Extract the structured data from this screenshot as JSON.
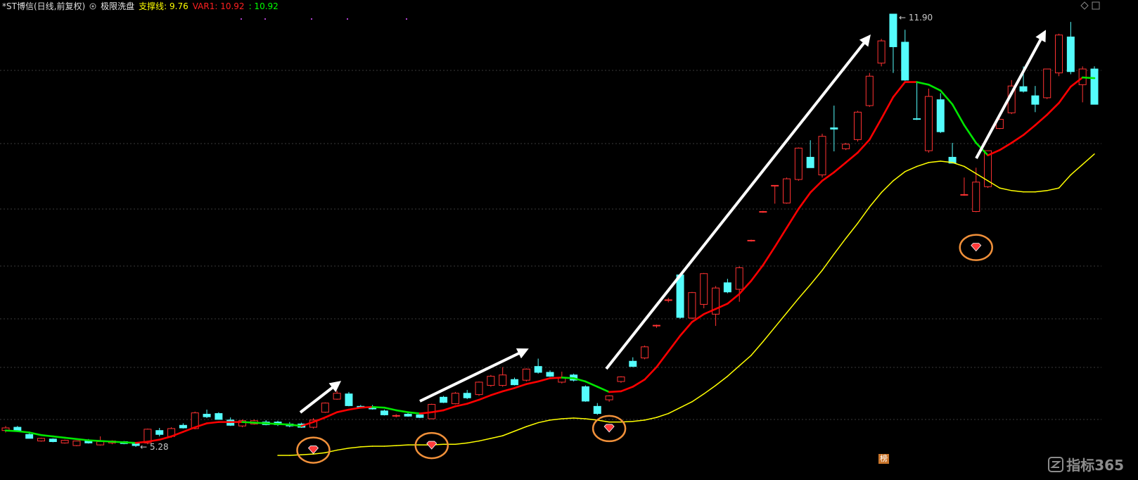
{
  "chart_data": {
    "type": "candlestick",
    "title": "*ST博信(日线,前复权)",
    "indicator": "极限洗盘",
    "legend": [
      {
        "text": "支撑线: 9.76",
        "color": "#ffff00"
      },
      {
        "text": "VAR1: 10.92",
        "color": "#ff2020"
      },
      {
        "text": ": 10.92",
        "color": "#00ff00"
      }
    ],
    "max_label": "← 11.90",
    "min_label": "← 5.28",
    "up_color": "#ff3232",
    "down_color": "#54fcfc",
    "open": [
      5.53,
      5.58,
      5.47,
      5.37,
      5.4,
      5.34,
      5.3,
      5.38,
      5.31,
      5.34,
      5.36,
      5.34,
      5.34,
      5.53,
      5.44,
      5.61,
      5.56,
      5.78,
      5.79,
      5.69,
      5.6,
      5.63,
      5.66,
      5.66,
      5.63,
      5.63,
      5.58,
      5.81,
      6.01,
      6.09,
      5.9,
      5.88,
      5.83,
      5.75,
      5.78,
      5.77,
      5.71,
      6.04,
      5.94,
      6.1,
      6.08,
      6.22,
      6.22,
      6.31,
      6.3,
      6.51,
      6.42,
      6.27,
      6.38,
      6.2,
      5.9,
      6.0,
      6.28,
      6.59,
      6.64,
      7.13,
      7.52,
      7.91,
      7.25,
      7.46,
      7.31,
      7.79,
      7.69,
      8.43,
      8.87,
      9.27,
      9.01,
      9.37,
      9.71,
      9.44,
      10.16,
      9.84,
      9.98,
      10.5,
      11.15,
      11.9,
      11.47,
      10.3,
      9.81,
      10.59,
      9.71,
      9.13,
      8.88,
      9.26,
      10.15,
      10.39,
      10.79,
      10.65,
      10.62,
      11.0,
      11.55,
      10.82,
      11.06
    ],
    "high": [
      5.6,
      5.6,
      5.49,
      5.42,
      5.41,
      5.39,
      5.37,
      5.4,
      5.44,
      5.38,
      5.37,
      5.35,
      5.56,
      5.57,
      5.58,
      5.64,
      5.82,
      5.85,
      5.81,
      5.73,
      5.7,
      5.7,
      5.69,
      5.68,
      5.66,
      5.65,
      5.72,
      5.96,
      6.14,
      6.12,
      5.92,
      5.92,
      5.85,
      5.78,
      5.8,
      5.79,
      5.94,
      6.06,
      6.12,
      6.15,
      6.28,
      6.38,
      6.5,
      6.34,
      6.48,
      6.63,
      6.45,
      6.43,
      6.4,
      6.22,
      5.95,
      6.07,
      6.36,
      6.65,
      6.83,
      7.15,
      7.56,
      7.93,
      7.65,
      7.94,
      7.74,
      7.85,
      8.04,
      8.45,
      8.89,
      9.28,
      9.4,
      9.86,
      9.97,
      10.07,
      10.5,
      9.93,
      10.42,
      11.0,
      11.52,
      11.9,
      11.66,
      10.85,
      10.76,
      10.69,
      9.93,
      9.4,
      9.55,
      9.81,
      10.3,
      10.89,
      11.1,
      10.8,
      11.06,
      11.6,
      11.78,
      11.1,
      11.1
    ],
    "low": [
      5.5,
      5.52,
      5.43,
      5.36,
      5.35,
      5.33,
      5.29,
      5.33,
      5.3,
      5.32,
      5.32,
      5.28,
      5.32,
      5.44,
      5.42,
      5.56,
      5.55,
      5.72,
      5.7,
      5.6,
      5.58,
      5.62,
      5.61,
      5.6,
      5.58,
      5.57,
      5.56,
      5.8,
      6.0,
      5.9,
      5.87,
      5.85,
      5.76,
      5.73,
      5.74,
      5.72,
      5.7,
      5.95,
      5.93,
      6.01,
      6.06,
      6.2,
      6.2,
      6.22,
      6.28,
      6.4,
      6.35,
      6.25,
      6.28,
      5.97,
      5.77,
      5.97,
      6.26,
      6.5,
      6.62,
      7.1,
      7.49,
      7.24,
      7.23,
      7.4,
      7.13,
      7.63,
      7.5,
      8.42,
      8.86,
      9.0,
      9.0,
      9.35,
      9.55,
      9.4,
      9.8,
      9.82,
      9.95,
      10.48,
      11.1,
      11.0,
      10.88,
      10.28,
      9.78,
      10.08,
      9.62,
      9.12,
      8.87,
      9.24,
      10.14,
      10.37,
      10.7,
      10.4,
      10.6,
      10.95,
      10.98,
      10.55,
      10.52
    ],
    "close": [
      5.57,
      5.53,
      5.41,
      5.41,
      5.36,
      5.38,
      5.37,
      5.34,
      5.36,
      5.37,
      5.33,
      5.3,
      5.55,
      5.47,
      5.56,
      5.57,
      5.8,
      5.74,
      5.7,
      5.61,
      5.68,
      5.68,
      5.62,
      5.62,
      5.6,
      5.58,
      5.69,
      5.95,
      6.1,
      5.91,
      5.89,
      5.86,
      5.77,
      5.76,
      5.75,
      5.73,
      5.93,
      5.96,
      6.1,
      6.03,
      6.27,
      6.36,
      6.38,
      6.23,
      6.47,
      6.42,
      6.36,
      6.34,
      6.3,
      5.98,
      5.79,
      6.06,
      6.35,
      6.51,
      6.81,
      7.14,
      7.53,
      7.26,
      7.64,
      7.93,
      7.71,
      7.65,
      8.02,
      8.44,
      8.88,
      9.28,
      9.38,
      9.85,
      9.55,
      10.03,
      10.14,
      9.91,
      10.4,
      10.95,
      11.49,
      11.4,
      10.89,
      10.29,
      10.64,
      10.1,
      9.62,
      9.14,
      9.33,
      9.81,
      10.29,
      10.8,
      10.72,
      10.52,
      11.06,
      11.58,
      11.02,
      11.06,
      10.52
    ],
    "series": [
      {
        "type": "line",
        "color": "#ffff00",
        "values": [
          null,
          null,
          null,
          null,
          null,
          null,
          null,
          null,
          null,
          null,
          null,
          null,
          null,
          null,
          null,
          null,
          null,
          null,
          null,
          null,
          null,
          null,
          null,
          5.15,
          5.15,
          5.16,
          5.17,
          5.19,
          5.23,
          5.26,
          5.28,
          5.29,
          5.29,
          5.3,
          5.31,
          5.31,
          5.31,
          5.32,
          5.32,
          5.34,
          5.37,
          5.41,
          5.45,
          5.52,
          5.59,
          5.65,
          5.69,
          5.71,
          5.72,
          5.71,
          5.69,
          5.66,
          5.66,
          5.67,
          5.69,
          5.73,
          5.79,
          5.88,
          5.97,
          6.09,
          6.22,
          6.36,
          6.52,
          6.68,
          6.89,
          7.11,
          7.33,
          7.55,
          7.76,
          7.98,
          8.23,
          8.47,
          8.7,
          8.95,
          9.17,
          9.35,
          9.49,
          9.57,
          9.63,
          9.65,
          9.63,
          9.57,
          9.46,
          9.35,
          9.24,
          9.2,
          9.18,
          9.18,
          9.2,
          9.24,
          9.44,
          9.6,
          9.76
        ]
      },
      {
        "type": "line",
        "color": "#ff0000",
        "fall_color": "#00e600",
        "values": [
          5.53,
          5.52,
          5.5,
          5.46,
          5.44,
          5.42,
          5.4,
          5.38,
          5.37,
          5.36,
          5.35,
          5.34,
          5.36,
          5.39,
          5.44,
          5.51,
          5.58,
          5.64,
          5.66,
          5.66,
          5.66,
          5.65,
          5.64,
          5.63,
          5.62,
          5.6,
          5.66,
          5.73,
          5.81,
          5.85,
          5.88,
          5.89,
          5.88,
          5.84,
          5.81,
          5.79,
          5.81,
          5.84,
          5.9,
          5.94,
          6.0,
          6.07,
          6.13,
          6.18,
          6.24,
          6.28,
          6.33,
          6.34,
          6.33,
          6.28,
          6.2,
          6.12,
          6.13,
          6.2,
          6.31,
          6.5,
          6.74,
          6.98,
          7.19,
          7.31,
          7.39,
          7.47,
          7.62,
          7.82,
          8.06,
          8.34,
          8.63,
          8.92,
          9.17,
          9.35,
          9.48,
          9.63,
          9.78,
          9.98,
          10.3,
          10.63,
          10.86,
          10.86,
          10.82,
          10.73,
          10.52,
          10.2,
          9.93,
          9.74,
          9.82,
          9.93,
          10.05,
          10.2,
          10.36,
          10.54,
          10.79,
          10.93,
          10.92
        ]
      },
      {
        "type": "signal",
        "color": "#ff3b3b",
        "ring_color": "#f0903a",
        "values": [
          null,
          null,
          null,
          null,
          null,
          null,
          null,
          null,
          null,
          null,
          null,
          null,
          null,
          null,
          null,
          null,
          null,
          null,
          null,
          null,
          null,
          null,
          null,
          null,
          null,
          null,
          5.23,
          null,
          null,
          null,
          null,
          null,
          null,
          null,
          null,
          null,
          5.3,
          null,
          null,
          null,
          null,
          null,
          null,
          null,
          null,
          null,
          null,
          null,
          null,
          null,
          null,
          5.56,
          null,
          null,
          null,
          null,
          null,
          null,
          null,
          null,
          null,
          null,
          null,
          null,
          null,
          null,
          null,
          null,
          null,
          null,
          null,
          null,
          null,
          null,
          null,
          null,
          null,
          null,
          null,
          null,
          null,
          null,
          8.33,
          null,
          null,
          null,
          null,
          null,
          null,
          null,
          null,
          null,
          null
        ]
      }
    ]
  },
  "watermark": "指标365",
  "badge": "榜"
}
